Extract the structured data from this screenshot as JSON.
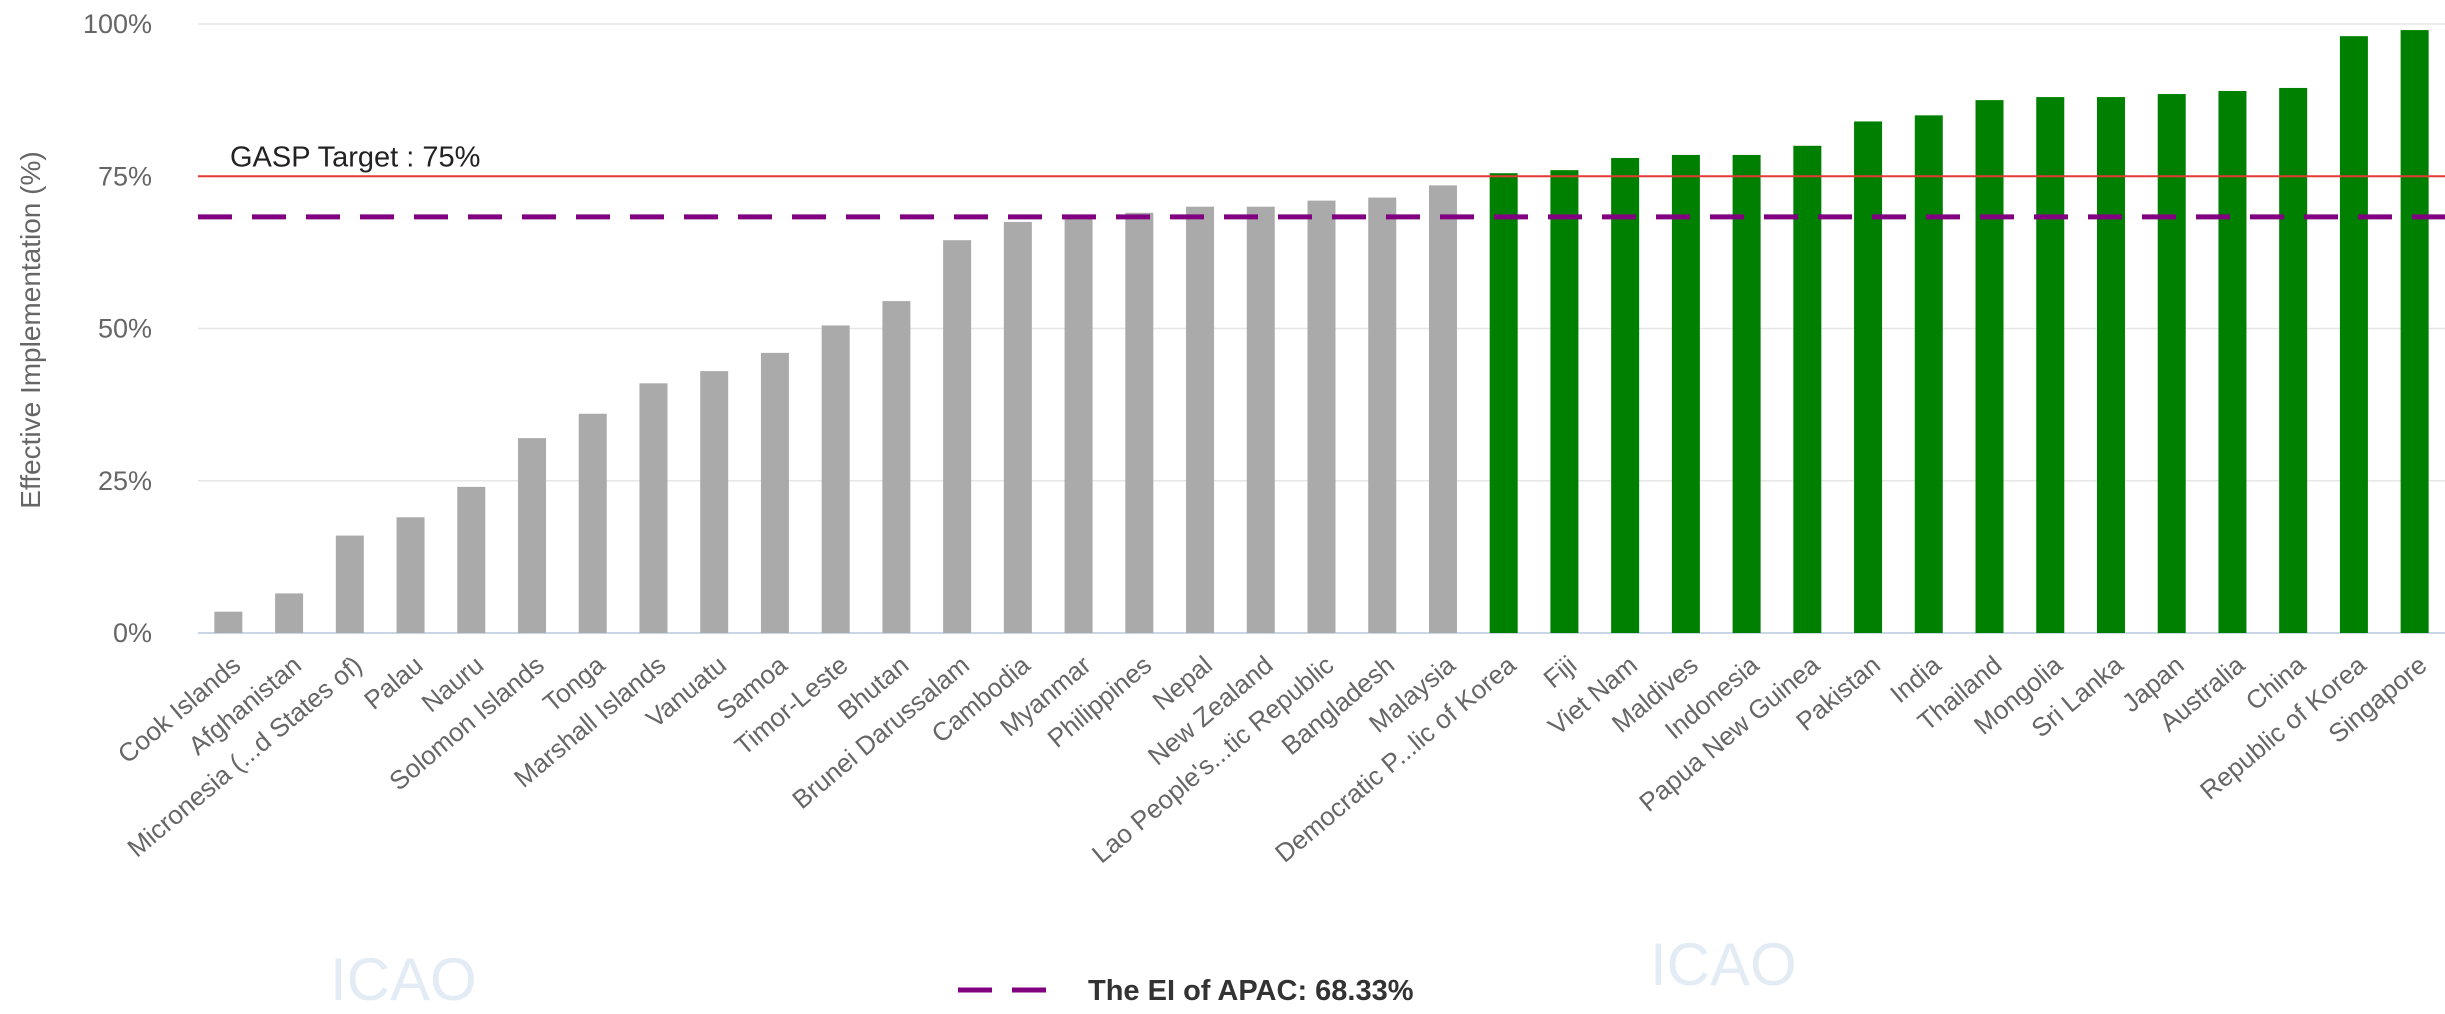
{
  "chart_data": {
    "type": "bar",
    "ylabel": "Effective Implementation (%)",
    "ylim": [
      0,
      100
    ],
    "yticks": [
      0,
      25,
      50,
      75,
      100
    ],
    "ytick_labels": [
      "0%",
      "25%",
      "50%",
      "75%",
      "100%"
    ],
    "grid": true,
    "categories": [
      "Cook Islands",
      "Afghanistan",
      "Micronesia (...d States of)",
      "Palau",
      "Nauru",
      "Solomon Islands",
      "Tonga",
      "Marshall Islands",
      "Vanuatu",
      "Samoa",
      "Timor-Leste",
      "Bhutan",
      "Brunei Darussalam",
      "Cambodia",
      "Myanmar",
      "Philippines",
      "Nepal",
      "New Zealand",
      "Lao People's...tic Republic",
      "Bangladesh",
      "Malaysia",
      "Democratic P...lic of Korea",
      "Fiji",
      "Viet Nam",
      "Maldives",
      "Indonesia",
      "Papua New Guinea",
      "Pakistan",
      "India",
      "Thailand",
      "Mongolia",
      "Sri Lanka",
      "Japan",
      "Australia",
      "China",
      "Republic of Korea",
      "Singapore"
    ],
    "values": [
      3.5,
      6.5,
      16,
      19,
      24,
      32,
      36,
      41,
      43,
      46,
      50.5,
      54.5,
      64.5,
      67.5,
      68.5,
      69,
      70,
      70,
      71,
      71.5,
      73.5,
      75.5,
      76,
      78,
      78.5,
      78.5,
      80,
      84,
      85,
      87.5,
      88,
      88,
      88.5,
      89,
      89.5,
      98,
      99
    ],
    "colors": {
      "below_target": "#aaaaaa",
      "above_target": "#008000"
    },
    "reference_lines": [
      {
        "label": "GASP Target : 75%",
        "value": 75,
        "color": "#e53935",
        "style": "solid"
      },
      {
        "label": "The EI of APAC: 68.33%",
        "value": 68.33,
        "color": "#800080",
        "style": "dashed"
      }
    ],
    "legend": {
      "position": "bottom-center",
      "entries": [
        "The EI of APAC: 68.33%"
      ]
    }
  },
  "watermark": {
    "text": "ICAO"
  }
}
